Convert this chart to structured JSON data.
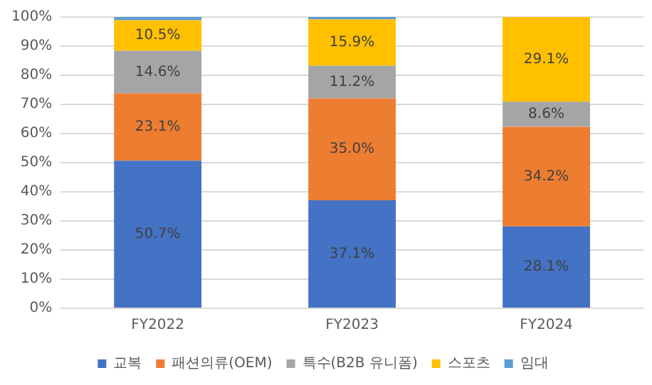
{
  "chart_data": {
    "type": "bar",
    "stacked": true,
    "categories": [
      "FY2022",
      "FY2023",
      "FY2024"
    ],
    "series": [
      {
        "name": "교복",
        "color": "#4472c4",
        "values": [
          50.7,
          37.1,
          28.1
        ],
        "value_labels": [
          "50.7%",
          "37.1%",
          "28.1%"
        ]
      },
      {
        "name": "패션의류(OEM)",
        "color": "#ed7d31",
        "values": [
          23.1,
          35.0,
          34.2
        ],
        "value_labels": [
          "23.1%",
          "35.0%",
          "34.2%"
        ]
      },
      {
        "name": "특수(B2B 유니폼)",
        "color": "#a5a5a5",
        "values": [
          14.6,
          11.2,
          8.6
        ],
        "value_labels": [
          "14.6%",
          "11.2%",
          "8.6%"
        ]
      },
      {
        "name": "스포츠",
        "color": "#ffc000",
        "values": [
          10.5,
          15.9,
          29.1
        ],
        "value_labels": [
          "10.5%",
          "15.9%",
          "29.1%"
        ]
      },
      {
        "name": "임대",
        "color": "#5b9bd5",
        "values": [
          1.1,
          0.8,
          0
        ],
        "value_labels": [
          null,
          null,
          null
        ]
      }
    ],
    "ylim": [
      0,
      100
    ],
    "yticks": [
      {
        "value": 0,
        "label": "0%"
      },
      {
        "value": 10,
        "label": "10%"
      },
      {
        "value": 20,
        "label": "20%"
      },
      {
        "value": 30,
        "label": "30%"
      },
      {
        "value": 40,
        "label": "40%"
      },
      {
        "value": 50,
        "label": "50%"
      },
      {
        "value": 60,
        "label": "60%"
      },
      {
        "value": 70,
        "label": "70%"
      },
      {
        "value": 80,
        "label": "80%"
      },
      {
        "value": 90,
        "label": "90%"
      },
      {
        "value": 100,
        "label": "100%"
      }
    ],
    "grid": "y",
    "legend": "bottom"
  }
}
